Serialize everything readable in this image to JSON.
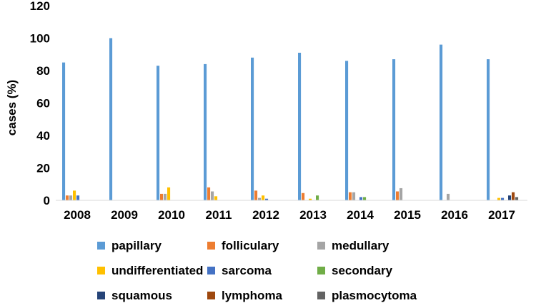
{
  "chart_data": {
    "type": "bar",
    "ylabel": "cases (%)",
    "ylim": [
      0,
      120
    ],
    "yticks": [
      0,
      20,
      40,
      60,
      80,
      100,
      120
    ],
    "grid": false,
    "legend_position": "bottom",
    "categories": [
      "2008",
      "2009",
      "2010",
      "2011",
      "2012",
      "2013",
      "2014",
      "2015",
      "2016",
      "2017"
    ],
    "series": [
      {
        "name": "papillary",
        "color": "#5b9bd5",
        "values": [
          85,
          100,
          83,
          84,
          88,
          91,
          86,
          87,
          96,
          87
        ]
      },
      {
        "name": "folliculary",
        "color": "#ed7d31",
        "values": [
          3,
          0,
          4,
          8,
          6,
          4.5,
          5,
          5.5,
          0,
          0
        ]
      },
      {
        "name": "medullary",
        "color": "#a5a5a5",
        "values": [
          3,
          0,
          4,
          5.5,
          1.5,
          0,
          5,
          7.5,
          4,
          0
        ]
      },
      {
        "name": "undifferentiated",
        "color": "#ffc000",
        "values": [
          6,
          0,
          8,
          2.5,
          3,
          1,
          0,
          0,
          0,
          1.5
        ]
      },
      {
        "name": "sarcoma",
        "color": "#4472c4",
        "values": [
          3,
          0,
          0,
          0,
          1,
          0,
          2,
          0,
          0,
          1.5
        ]
      },
      {
        "name": "secondary",
        "color": "#70ad47",
        "values": [
          0,
          0,
          0,
          0,
          0,
          3,
          2,
          0,
          0,
          0
        ]
      },
      {
        "name": "squamous",
        "color": "#264478",
        "values": [
          0,
          0,
          0,
          0,
          0,
          0,
          0,
          0,
          0,
          3
        ]
      },
      {
        "name": "lymphoma",
        "color": "#9e480e",
        "values": [
          0,
          0,
          0,
          0,
          0,
          0,
          0,
          0,
          0,
          5
        ]
      },
      {
        "name": "plasmocytoma",
        "color": "#636363",
        "values": [
          0,
          0,
          0,
          0,
          0,
          0,
          0,
          0,
          0,
          2
        ]
      }
    ]
  }
}
